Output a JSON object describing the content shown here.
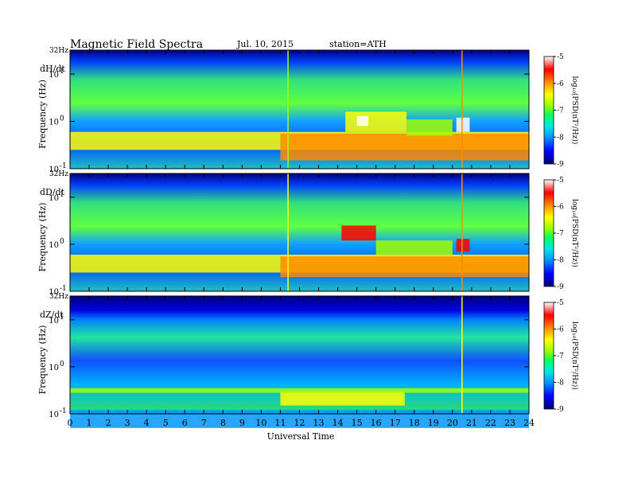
{
  "header": {
    "title": "Magnetic  Field  Spectra",
    "date": "Jul.  10, 2015",
    "station": "station=ATH"
  },
  "chart_data": {
    "type": "heatmap",
    "x_label": "Universal Time",
    "x_ticks": [
      "0",
      "1",
      "2",
      "3",
      "4",
      "5",
      "6",
      "7",
      "8",
      "9",
      "10",
      "11",
      "12",
      "13",
      "14",
      "15",
      "16",
      "17",
      "18",
      "19",
      "20",
      "21",
      "22",
      "23",
      "24"
    ],
    "x_range": [
      0,
      24
    ],
    "y_label": "Frequency  (Hz)",
    "y_scale": "log",
    "y_range_hz": [
      0.1,
      32
    ],
    "y_top_label": "32Hz",
    "y_ticks": [
      {
        "base": "10",
        "exp": "1",
        "value": 10
      },
      {
        "base": "10",
        "exp": "0",
        "value": 1
      },
      {
        "base": "10",
        "exp": "-1",
        "value": 0.1
      }
    ],
    "colorbar": {
      "label": "log₁₀(PSD(nT²/Hz))",
      "ticks": [
        "-5",
        "-6",
        "-7",
        "-8",
        "-9"
      ],
      "range": [
        -9,
        -5
      ],
      "colors": [
        "#00007a",
        "#0000ff",
        "#0096ff",
        "#00e6e6",
        "#00ff64",
        "#a0ff00",
        "#ffff00",
        "#ff8c00",
        "#ff0000",
        "#ffffff"
      ]
    },
    "panels": [
      {
        "component": "dH/dt",
        "features": [
          {
            "kind": "band",
            "x": [
              0,
              24
            ],
            "f": [
              0.25,
              0.6
            ],
            "level": -6.2
          },
          {
            "kind": "band",
            "x": [
              11.0,
              24
            ],
            "f": [
              0.15,
              0.55
            ],
            "level": -5.9
          },
          {
            "kind": "band",
            "x": [
              14.4,
              17.6
            ],
            "f": [
              0.6,
              1.6
            ],
            "level": -6.3
          },
          {
            "kind": "band",
            "x": [
              15.0,
              15.6
            ],
            "f": [
              0.8,
              1.3
            ],
            "level": -5.0
          },
          {
            "kind": "band",
            "x": [
              17.6,
              20.0
            ],
            "f": [
              0.5,
              1.1
            ],
            "level": -6.6
          },
          {
            "kind": "band",
            "x": [
              20.2,
              20.9
            ],
            "f": [
              0.6,
              1.2
            ],
            "level": -5.2
          },
          {
            "kind": "line",
            "x": [
              20.5,
              20.5
            ],
            "f": [
              0.1,
              32
            ],
            "level": -6.0
          },
          {
            "kind": "line",
            "x": [
              11.4,
              11.4
            ],
            "f": [
              0.1,
              32
            ],
            "level": -6.6
          }
        ]
      },
      {
        "component": "dD/dt",
        "features": [
          {
            "kind": "band",
            "x": [
              0,
              24
            ],
            "f": [
              0.25,
              0.6
            ],
            "level": -6.3
          },
          {
            "kind": "band",
            "x": [
              11.0,
              24
            ],
            "f": [
              0.2,
              0.55
            ],
            "level": -6.0
          },
          {
            "kind": "band",
            "x": [
              14.2,
              16.0
            ],
            "f": [
              1.2,
              2.5
            ],
            "level": -5.4
          },
          {
            "kind": "band",
            "x": [
              16.0,
              20.0
            ],
            "f": [
              0.6,
              1.2
            ],
            "level": -6.7
          },
          {
            "kind": "band",
            "x": [
              20.2,
              20.9
            ],
            "f": [
              0.7,
              1.3
            ],
            "level": -5.3
          },
          {
            "kind": "line",
            "x": [
              20.5,
              20.5
            ],
            "f": [
              0.1,
              32
            ],
            "level": -6.0
          },
          {
            "kind": "line",
            "x": [
              11.4,
              11.4
            ],
            "f": [
              0.1,
              32
            ],
            "level": -6.5
          }
        ]
      },
      {
        "component": "dZ/dt",
        "features": [
          {
            "kind": "band",
            "x": [
              0,
              24
            ],
            "f": [
              0.05,
              0.12
            ],
            "level": -8.2
          },
          {
            "kind": "band",
            "x": [
              11.0,
              17.5
            ],
            "f": [
              0.15,
              0.3
            ],
            "level": -6.2
          },
          {
            "kind": "band",
            "x": [
              0,
              24
            ],
            "f": [
              0.28,
              0.35
            ],
            "level": -6.8
          },
          {
            "kind": "line",
            "x": [
              20.5,
              20.5
            ],
            "f": [
              0.1,
              32
            ],
            "level": -6.4
          }
        ]
      }
    ]
  }
}
